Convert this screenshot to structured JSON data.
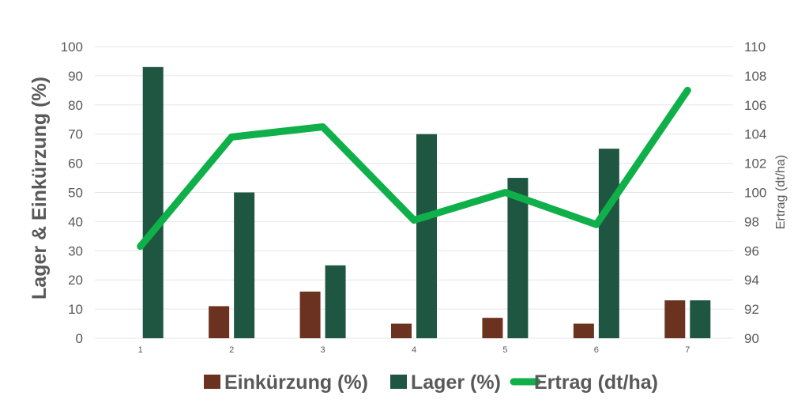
{
  "chart_data": {
    "type": "bar",
    "categories": [
      "1",
      "2",
      "3",
      "4",
      "5",
      "6",
      "7"
    ],
    "series": [
      {
        "name": "Einkürzung (%)",
        "type": "bar",
        "axis": "left",
        "color": "#6b3220",
        "values": [
          0,
          11,
          16,
          5,
          7,
          5,
          13
        ]
      },
      {
        "name": "Lager (%)",
        "type": "bar",
        "axis": "left",
        "color": "#1f5641",
        "values": [
          93,
          50,
          25,
          70,
          55,
          65,
          13
        ]
      },
      {
        "name": "Ertrag (dt/ha)",
        "type": "line",
        "axis": "right",
        "color": "#0fb04a",
        "values": [
          96.3,
          103.8,
          104.5,
          98.1,
          100,
          97.8,
          107
        ]
      }
    ],
    "ylabel": "Lager & Einkürzung (%)",
    "ylabel_right": "Ertrag (dt/ha)",
    "ylim": [
      0,
      100
    ],
    "yticks": [
      "0",
      "10",
      "20",
      "30",
      "40",
      "50",
      "60",
      "70",
      "80",
      "90",
      "100"
    ],
    "ylim_right": [
      90,
      110
    ],
    "yticks_right": [
      "90",
      "92",
      "94",
      "96",
      "98",
      "100",
      "102",
      "104",
      "106",
      "108",
      "110"
    ],
    "grid": true,
    "legend": "bottom"
  }
}
